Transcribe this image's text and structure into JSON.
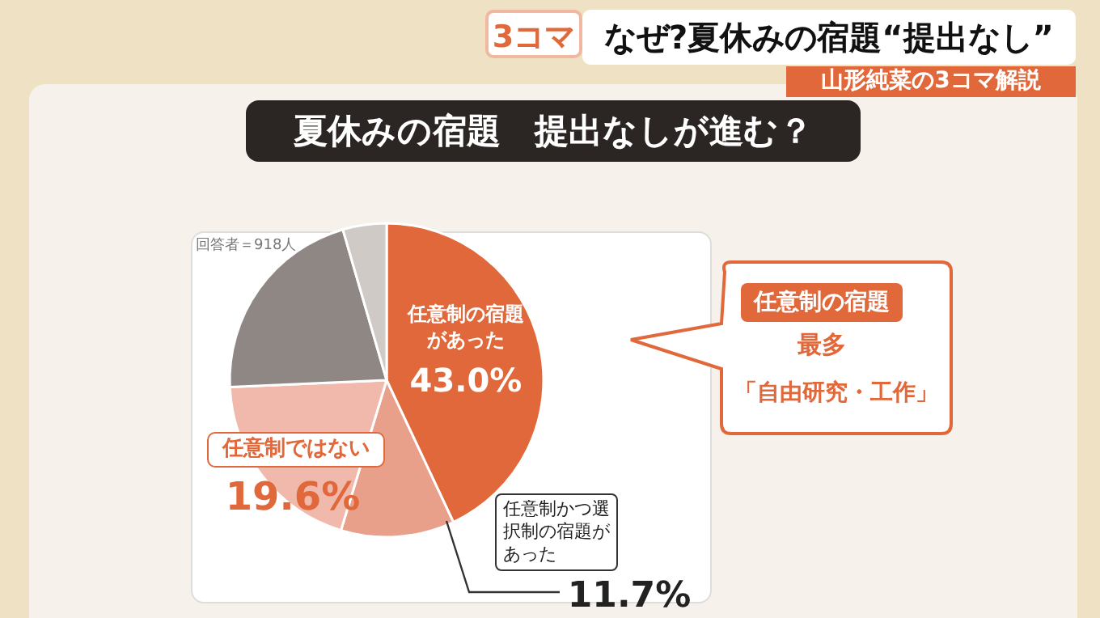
{
  "chart_data": {
    "type": "pie",
    "title": "夏休みの宿題　提出なしが進む？",
    "categories": [
      "任意制の宿題があった",
      "任意制かつ選択制の宿題があった",
      "任意制ではない",
      null,
      null
    ],
    "values": [
      43.0,
      11.7,
      19.6,
      21.2,
      4.5
    ],
    "colors": [
      "#e0683a",
      "#e9a08a",
      "#f1b9ac",
      "#8f8784",
      "#cfcac6"
    ],
    "value_labels": [
      "43.0%",
      "11.7%",
      "19.6%",
      null,
      null
    ],
    "legend": false,
    "annotations": [
      "3コマ",
      "なぜ?夏休みの宿題“提出なし”",
      "山形純菜の3コマ解説",
      "回答者＝918人",
      "任意制の宿題",
      "最多",
      "「自由研究・工作」"
    ]
  }
}
